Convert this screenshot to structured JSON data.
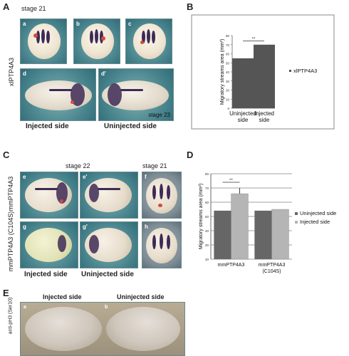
{
  "panelA": {
    "label": "A",
    "stage_top": "stage 21",
    "row_label": "xlPTP4A3",
    "sub": [
      "a",
      "b",
      "c",
      "d",
      "d'"
    ],
    "stage_bottom": "stage 23",
    "captions": [
      "Injected side",
      "Uninjected side"
    ]
  },
  "panelB": {
    "label": "B"
  },
  "panelC": {
    "label": "C",
    "stage_left": "stage 22",
    "stage_right": "stage 21",
    "row1_label": "mmPTP4A3",
    "row2_label": "mmPTP4A3 (C104S)",
    "sub": [
      "e",
      "e'",
      "f",
      "g",
      "g'",
      "h"
    ],
    "captions": [
      "Injected side",
      "Uninjected side"
    ]
  },
  "panelD": {
    "label": "D"
  },
  "panelE": {
    "label": "E",
    "row_label": "anti-pH3 (Ser10)",
    "captions": [
      "Injected side",
      "Uninjected side"
    ],
    "sub": [
      "a",
      "b"
    ]
  },
  "chart_data": [
    {
      "type": "bar",
      "categories": [
        "Uninjected side",
        "Injected side"
      ],
      "series": [
        {
          "name": "xlPTP4A3",
          "values": [
            55,
            70
          ]
        }
      ],
      "ylabel": "Migratory streams area (mm²)",
      "xlabel": "",
      "ylim": [
        0,
        80
      ],
      "yticks": [
        0,
        10,
        20,
        30,
        40,
        50,
        60,
        70,
        80
      ],
      "annotation": "**",
      "legend": "right",
      "colors": [
        "#555555"
      ]
    },
    {
      "type": "bar",
      "categories": [
        "mmPTP4A3",
        "mmPTP4A3 (C104S)"
      ],
      "series": [
        {
          "name": "Uninjected side",
          "values": [
            54,
            54
          ]
        },
        {
          "name": "Injected side",
          "values": [
            66,
            55
          ]
        }
      ],
      "ylabel": "Migratory streams area (mm²)",
      "xlabel": "",
      "ylim": [
        20,
        80
      ],
      "yticks": [
        20,
        30,
        40,
        50,
        60,
        70,
        80
      ],
      "annotation": "**",
      "legend": "right",
      "colors": [
        "#666666",
        "#b5b5b5"
      ]
    }
  ]
}
